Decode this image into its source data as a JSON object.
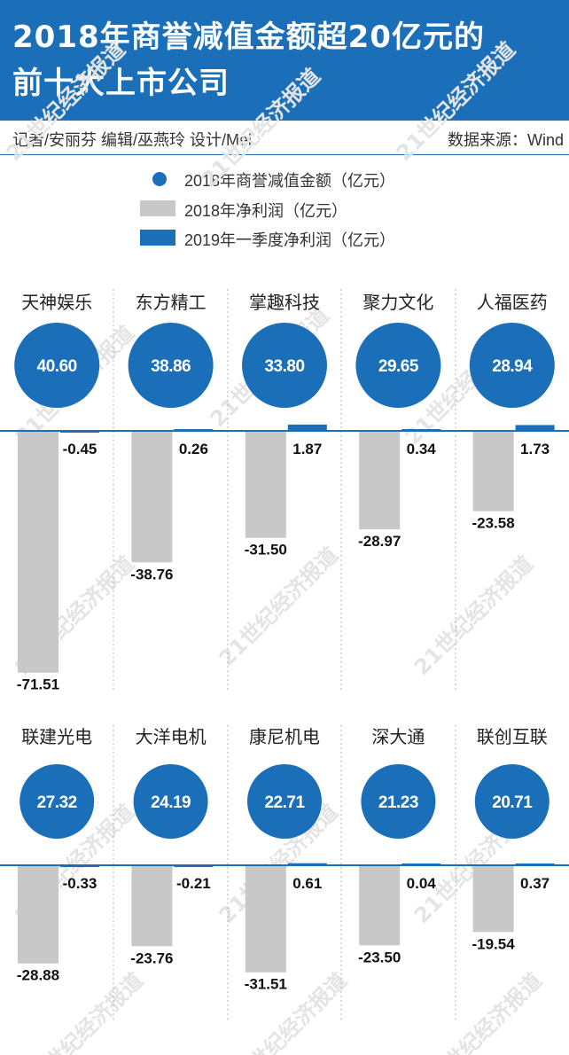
{
  "header": {
    "title_line1": "2018年商誉减值金额超20亿元的",
    "title_line2": "前十大上市公司"
  },
  "credits": "记者/安丽芬  编辑/巫燕玲  设计/Mel",
  "source": "数据来源：Wind",
  "legend": [
    {
      "label": "2018年商誉减值金额（亿元）",
      "shape": "circle",
      "color": "#1a6fb8"
    },
    {
      "label": "2018年净利润（亿元）",
      "shape": "bar",
      "color": "#c8c8c8"
    },
    {
      "label": "2019年一季度净利润（亿元）",
      "shape": "bar",
      "color": "#1a6fb8"
    }
  ],
  "watermark": "21世纪经济报道",
  "colors": {
    "brand": "#1a6fb8",
    "gray_bar": "#c8c8c8"
  },
  "chart_data": {
    "type": "bar",
    "categories": [
      "天神娱乐",
      "东方精工",
      "掌趣科技",
      "聚力文化",
      "人福医药",
      "联建光电",
      "大洋电机",
      "康尼机电",
      "深大通",
      "联创互联"
    ],
    "series": [
      {
        "name": "2018年商誉减值金额（亿元）",
        "values": [
          40.6,
          38.86,
          33.8,
          29.65,
          28.94,
          27.32,
          24.19,
          22.71,
          21.23,
          20.71
        ]
      },
      {
        "name": "2018年净利润（亿元）",
        "values": [
          -71.51,
          -38.76,
          -31.5,
          -28.97,
          -23.58,
          -28.88,
          -23.76,
          -31.51,
          -23.5,
          -19.54
        ]
      },
      {
        "name": "2019年一季度净利润（亿元）",
        "values": [
          -0.45,
          0.26,
          1.87,
          0.34,
          1.73,
          -0.33,
          -0.21,
          0.61,
          0.04,
          0.37
        ]
      }
    ],
    "labels": {
      "impairment": [
        "40.60",
        "38.86",
        "33.80",
        "29.65",
        "28.94",
        "27.32",
        "24.19",
        "22.71",
        "21.23",
        "20.71"
      ],
      "profit_2018": [
        "-71.51",
        "-38.76",
        "-31.50",
        "-28.97",
        "-23.58",
        "-28.88",
        "-23.76",
        "-31.51",
        "-23.50",
        "-19.54"
      ],
      "profit_2019q1": [
        "-0.45",
        "0.26",
        "1.87",
        "0.34",
        "1.73",
        "-0.33",
        "-0.21",
        "0.61",
        "0.04",
        "0.37"
      ]
    }
  }
}
